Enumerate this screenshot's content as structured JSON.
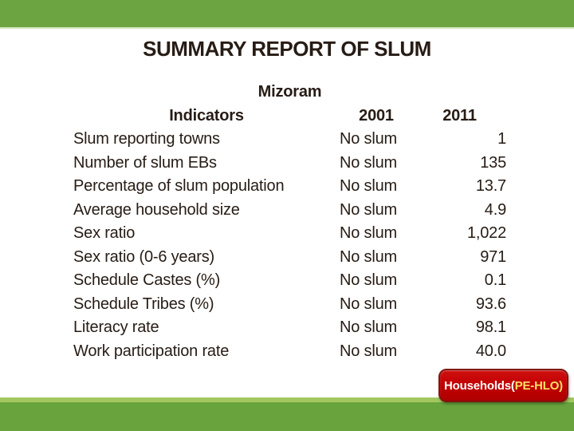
{
  "slide": {
    "title": "SUMMARY REPORT OF SLUM",
    "region_label": "Mizoram"
  },
  "table": {
    "headers": {
      "indicator": "Indicators",
      "col2001": "2001",
      "col2011": "2011"
    },
    "rows": [
      {
        "indicator": "Slum reporting towns",
        "y2001": "No slum",
        "y2011": "1"
      },
      {
        "indicator": "Number of slum EBs",
        "y2001": "No slum",
        "y2011": "135"
      },
      {
        "indicator": "Percentage of slum population",
        "y2001": "No slum",
        "y2011": "13.7"
      },
      {
        "indicator": "Average household size",
        "y2001": "No slum",
        "y2011": "4.9"
      },
      {
        "indicator": "Sex ratio",
        "y2001": "No slum",
        "y2011": "1,022"
      },
      {
        "indicator": "Sex ratio (0-6 years)",
        "y2001": "No slum",
        "y2011": "971"
      },
      {
        "indicator": "Schedule Castes (%)",
        "y2001": "No slum",
        "y2011": "0.1"
      },
      {
        "indicator": "Schedule Tribes (%)",
        "y2001": "No slum",
        "y2011": "93.6"
      },
      {
        "indicator": "Literacy rate",
        "y2001": "No slum",
        "y2011": "98.1"
      },
      {
        "indicator": "Work participation rate",
        "y2001": "No slum",
        "y2011": "40.0"
      }
    ]
  },
  "badge": {
    "text_primary": "Households(",
    "text_secondary": "PE-HLO)"
  },
  "colors": {
    "bar_green": "#6ba440",
    "strip_light_green": "#a3c75f",
    "bottom_bar_green": "#68a33d",
    "badge_red": "#c00000",
    "badge_border": "#7d170d",
    "badge_text_secondary": "#ffe066",
    "text": "#271c15",
    "background": "#ffffff"
  }
}
